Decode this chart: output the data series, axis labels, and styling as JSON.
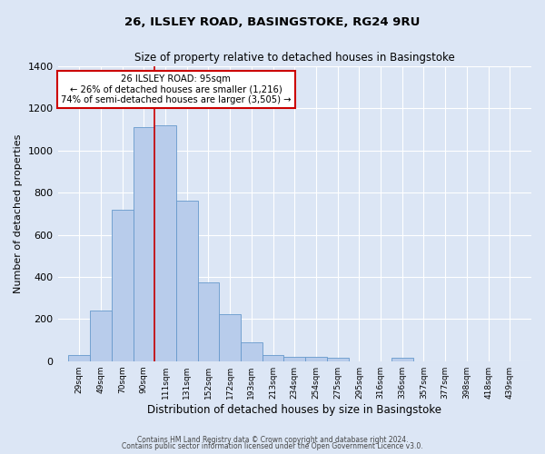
{
  "title": "26, ILSLEY ROAD, BASINGSTOKE, RG24 9RU",
  "subtitle": "Size of property relative to detached houses in Basingstoke",
  "xlabel": "Distribution of detached houses by size in Basingstoke",
  "ylabel": "Number of detached properties",
  "bar_color": "#b8cceb",
  "bar_edge_color": "#6699cc",
  "background_color": "#dce6f5",
  "plot_bg_color": "#dce6f5",
  "bin_labels": [
    "29sqm",
    "49sqm",
    "70sqm",
    "90sqm",
    "111sqm",
    "131sqm",
    "152sqm",
    "172sqm",
    "193sqm",
    "213sqm",
    "234sqm",
    "254sqm",
    "275sqm",
    "295sqm",
    "316sqm",
    "336sqm",
    "357sqm",
    "377sqm",
    "398sqm",
    "418sqm",
    "439sqm"
  ],
  "bin_edges": [
    19,
    39,
    59,
    79,
    99,
    119,
    139,
    159,
    179,
    199,
    219,
    239,
    259,
    279,
    299,
    319,
    339,
    359,
    379,
    399,
    419,
    439
  ],
  "bar_heights": [
    30,
    240,
    720,
    1110,
    1120,
    760,
    375,
    225,
    90,
    30,
    20,
    20,
    15,
    0,
    0,
    15,
    0,
    0,
    0,
    0,
    0
  ],
  "ylim": [
    0,
    1400
  ],
  "yticks": [
    0,
    200,
    400,
    600,
    800,
    1000,
    1200,
    1400
  ],
  "vline_x": 99,
  "vline_color": "#cc0000",
  "annotation_title": "26 ILSLEY ROAD: 95sqm",
  "annotation_line1": "← 26% of detached houses are smaller (1,216)",
  "annotation_line2": "74% of semi-detached houses are larger (3,505) →",
  "annotation_box_color": "#ffffff",
  "annotation_box_edge": "#cc0000",
  "footer1": "Contains HM Land Registry data © Crown copyright and database right 2024.",
  "footer2": "Contains public sector information licensed under the Open Government Licence v3.0."
}
